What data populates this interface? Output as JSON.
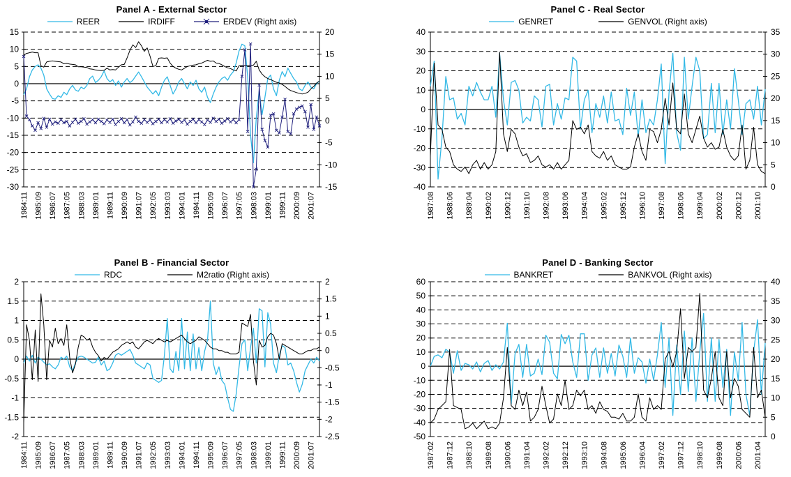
{
  "figure": {
    "background": "#ffffff",
    "grid": "2x2",
    "style": "excel-line-chart"
  },
  "colors": {
    "series_cyan": "#33b9e6",
    "series_black": "#000000",
    "series_navy": "#20207d",
    "axis": "#000000",
    "text": "#000000"
  },
  "chart_data": [
    {
      "id": "panel-a",
      "type": "line",
      "title": "Panel A - External Sector",
      "legend_position": "top",
      "grid": "dashed-horizontal",
      "left_axis": {
        "min": -30,
        "max": 15,
        "step": 5
      },
      "right_axis": {
        "min": -15,
        "max": 20,
        "step": 5
      },
      "x_tick_every": 5,
      "x_tick_labels": [
        "1984:11",
        "1985:09",
        "1986:07",
        "1987:05",
        "1988:03",
        "1989:01",
        "1989:11",
        "1990:09",
        "1991:07",
        "1992:05",
        "1993:03",
        "1994:01",
        "1994:11",
        "1995:09",
        "1996:07",
        "1997:05",
        "1998:03",
        "1999:01",
        "1999:11",
        "2000:09",
        "2001:07"
      ],
      "series": [
        {
          "name": "REER",
          "axis": "left",
          "color": "#33b9e6",
          "width": 1.3,
          "values": [
            -3.2,
            -1.5,
            2,
            4,
            5,
            5.5,
            4.5,
            2.5,
            -1.5,
            -3,
            -4.3,
            -4.5,
            -3.5,
            -4,
            -2.5,
            -3.2,
            -1.5,
            -0.5,
            -1.8,
            -2.2,
            -1,
            -1.5,
            -0.5,
            1.5,
            2.2,
            0.3,
            1,
            2,
            3.7,
            1.5,
            0.5,
            1.2,
            -0.5,
            0.8,
            -1,
            0.5,
            1.5,
            0.3,
            1,
            2.2,
            3.4,
            2,
            0.5,
            -1,
            -2,
            -3,
            -2,
            -3.5,
            -1,
            1,
            2,
            -0.5,
            -3,
            -1.5,
            0.5,
            1.5,
            0,
            -1.5,
            0.5,
            -0.5,
            1,
            -1.5,
            -2.5,
            -1,
            -4,
            -5.5,
            -3,
            -1,
            0.5,
            1.5,
            2,
            1,
            2.5,
            3.5,
            6,
            9.5,
            11.5,
            11,
            2,
            -15,
            -23,
            -10,
            -2,
            -9,
            -4,
            1.5,
            2.5,
            -1.5,
            -3.5,
            1,
            3.5,
            2,
            4.5,
            3,
            1.5,
            0.5,
            -1.5,
            -2,
            -0.5,
            0.5,
            -1,
            -1.5,
            0,
            0.8
          ]
        },
        {
          "name": "IRDIFF",
          "axis": "left",
          "color": "#000000",
          "width": 1,
          "values": [
            8.3,
            8.8,
            9,
            9.2,
            9,
            9,
            5.2,
            4.8,
            6.3,
            6.5,
            6.6,
            6.5,
            6.4,
            6.3,
            5.8,
            5.9,
            5.7,
            5.6,
            5.5,
            4.9,
            4.9,
            4.8,
            4.7,
            4.3,
            4.2,
            4,
            3.9,
            3.8,
            3.9,
            4.5,
            4,
            4.1,
            4,
            4.8,
            5.5,
            5.6,
            7.5,
            9.7,
            11.3,
            10.5,
            12.2,
            11,
            9.4,
            10.4,
            8,
            5,
            5.2,
            7.4,
            7.5,
            7.4,
            7.5,
            6,
            5,
            4.5,
            4.2,
            4,
            4.5,
            5,
            5.2,
            5.4,
            5.5,
            5.8,
            6,
            6.4,
            6.8,
            6.5,
            6.6,
            6,
            5.9,
            5.5,
            5,
            4.6,
            4.4,
            4,
            3.7,
            5.2,
            5.3,
            5.3,
            5.2,
            5.3,
            5.4,
            6.5,
            4,
            2.8,
            2,
            1.5,
            1.2,
            0.8,
            0.4,
            0.2,
            -0.2,
            -0.8,
            -1.5,
            -2,
            -2.3,
            -2.6,
            -2.8,
            -3,
            -2.8,
            -2.5,
            -1.5,
            -0.8,
            0.2,
            0.8
          ]
        },
        {
          "name": "ERDEV (Right axis)",
          "axis": "right",
          "color": "#20207d",
          "width": 1,
          "marker": "x",
          "values": [
            14.5,
            1,
            0.2,
            -1.2,
            -2.2,
            -0.5,
            -1.8,
            0.5,
            -1.5,
            0.3,
            -0.8,
            -0.3,
            -0.6,
            0.2,
            -0.5,
            -0.2,
            -1.2,
            -0.4,
            0.3,
            -0.6,
            -0.2,
            0.4,
            -0.8,
            -0.3,
            0.2,
            -0.5,
            0.3,
            -0.2,
            -0.7,
            0.1,
            -0.4,
            0.3,
            -0.9,
            -0.2,
            0.4,
            -0.5,
            0.2,
            -1,
            -0.3,
            0.8,
            -0.2,
            -0.6,
            0.2,
            -0.4,
            0.1,
            -0.7,
            -0.2,
            0.3,
            -0.5,
            0.2,
            -0.3,
            0.4,
            -0.6,
            -0.1,
            0.3,
            -0.4,
            0.1,
            -0.8,
            -0.2,
            0.3,
            -0.5,
            0.2,
            -0.3,
            -0.9,
            0.1,
            -0.4,
            0.5,
            -0.2,
            0.3,
            -0.6,
            -0.1,
            0.4,
            -0.3,
            0.2,
            -0.5,
            0.2,
            10,
            16,
            -2.5,
            17.3,
            -15,
            -11,
            8,
            -2,
            -4.5,
            -6,
            1.2,
            1.5,
            -2.2,
            -2.8,
            0.8,
            4.8,
            -2.5,
            -3,
            1.5,
            2.6,
            3,
            3.3,
            2,
            -1.5,
            3.6,
            -2,
            0.8,
            -1.2
          ]
        }
      ]
    },
    {
      "id": "panel-c",
      "type": "line",
      "title": "Panel C - Real Sector",
      "legend_position": "top",
      "grid": "dashed-horizontal",
      "left_axis": {
        "min": -40,
        "max": 40,
        "step": 10
      },
      "right_axis": {
        "min": 0,
        "max": 35,
        "step": 5
      },
      "x_tick_every": 5,
      "x_tick_labels": [
        "1987:08",
        "1988:06",
        "1989:04",
        "1990:02",
        "1990:12",
        "1991:10",
        "1992:08",
        "1993:06",
        "1994:04",
        "1995:02",
        "1995:12",
        "1996:10",
        "1997:08",
        "1998:06",
        "1999:04",
        "2000:02",
        "2000:12",
        "2001:10"
      ],
      "series": [
        {
          "name": "GENRET",
          "axis": "left",
          "color": "#33b9e6",
          "width": 1.3,
          "values": [
            12,
            25,
            -36,
            -15,
            17,
            5,
            6,
            -5,
            -2,
            -8,
            12,
            7,
            14,
            9,
            5,
            5,
            12,
            -4,
            29,
            5,
            -8,
            14,
            15,
            10,
            -7,
            -4,
            -6,
            7,
            5,
            -9,
            12,
            13,
            -8,
            3,
            -5,
            6,
            5,
            27,
            25,
            -10,
            5,
            10,
            -12,
            3,
            -4,
            7,
            -7,
            9,
            -6,
            -5,
            -13,
            11,
            -3,
            9,
            -14,
            5,
            -12,
            -5,
            -8,
            5,
            23.5,
            -28,
            8.5,
            29,
            -12,
            -21,
            27,
            -5,
            12,
            27,
            20,
            -15,
            -13,
            13.5,
            -12,
            13.5,
            -13,
            5,
            -10,
            21,
            5,
            -13,
            3,
            5,
            -5,
            12,
            -8,
            10.5
          ]
        },
        {
          "name": "GENVOL (Right axis)",
          "axis": "right",
          "color": "#000000",
          "width": 1,
          "values": [
            7,
            28,
            14,
            13,
            9,
            8,
            5,
            4,
            3.5,
            4.5,
            3,
            5,
            6,
            4,
            5.5,
            4,
            5,
            8,
            30.5,
            12,
            8,
            13,
            12,
            9,
            7,
            7.5,
            5.5,
            6,
            7,
            5,
            4.5,
            5,
            4,
            5.5,
            4,
            5,
            6,
            15,
            13,
            13.5,
            12,
            14,
            8,
            7,
            6.5,
            8,
            6,
            7,
            5,
            4.5,
            4,
            4,
            4.5,
            9,
            12,
            8,
            6,
            13,
            12.5,
            10,
            13,
            20,
            14,
            23.5,
            13,
            12,
            21,
            12,
            10,
            13,
            16,
            11,
            9,
            10,
            8.5,
            9,
            13,
            9,
            7,
            6,
            7,
            14,
            4,
            6,
            13.5,
            5,
            3.5,
            3
          ]
        }
      ]
    },
    {
      "id": "panel-b",
      "type": "line",
      "title": "Panel B - Financial Sector",
      "legend_position": "top",
      "grid": "dashed-horizontal",
      "left_axis": {
        "min": -2,
        "max": 2,
        "step": 0.5
      },
      "right_axis": {
        "min": -2.5,
        "max": 2,
        "step": 0.5
      },
      "x_tick_every": 5,
      "x_tick_labels": [
        "1984:11",
        "1985:09",
        "1986:07",
        "1987:05",
        "1988:03",
        "1989:01",
        "1989:11",
        "1990:09",
        "1991:07",
        "1992:05",
        "1993:03",
        "1994:01",
        "1994:11",
        "1995:09",
        "1996:07",
        "1997:05",
        "1998:03",
        "1999:01",
        "1999:11",
        "2000:09",
        "2001:07"
      ],
      "series": [
        {
          "name": "RDC",
          "axis": "left",
          "color": "#33b9e6",
          "width": 1.3,
          "values": [
            -0.1,
            0.08,
            -0.05,
            0.1,
            -0.1,
            0.05,
            0,
            -0.08,
            -0.15,
            -0.12,
            -0.2,
            -0.25,
            -0.15,
            0.05,
            0,
            0.08,
            -0.2,
            -0.3,
            -0.1,
            0.05,
            0.08,
            0.05,
            0,
            -0.05,
            -0.1,
            -0.08,
            0.05,
            -0.15,
            -0.05,
            -0.3,
            -0.25,
            -0.1,
            0.1,
            0.15,
            0.1,
            0.15,
            0.2,
            0.25,
            0.1,
            -0.1,
            -0.15,
            -0.2,
            -0.25,
            -0.1,
            -0.15,
            -0.5,
            -0.55,
            -0.6,
            -0.55,
            0.1,
            1.05,
            -0.25,
            -0.35,
            0.2,
            -0.3,
            1.05,
            -0.25,
            0.7,
            -0.3,
            0.65,
            -0.25,
            0.3,
            -0.3,
            0.2,
            0.5,
            1.5,
            -0.1,
            -0.4,
            -0.2,
            -0.55,
            -0.65,
            -1,
            -1.3,
            -1.35,
            -0.9,
            -0.2,
            0.4,
            0.5,
            -0.3,
            0.3,
            0.8,
            -0.1,
            1.3,
            1.25,
            -0.2,
            1.2,
            0.9,
            -0.1,
            -0.35,
            0.1,
            0.35,
            0.3,
            -0.15,
            -0.1,
            -0.3,
            -0.6,
            -0.85,
            -0.65,
            -0.3,
            -0.15,
            0,
            -0.1,
            0.05,
            -0.05
          ]
        },
        {
          "name": "M2ratio  (Right axis)",
          "axis": "right",
          "color": "#000000",
          "width": 1,
          "values": [
            -2.1,
            0.75,
            0.3,
            -0.85,
            0.6,
            -0.9,
            1.65,
            0.75,
            -0.85,
            0.3,
            0.1,
            0.65,
            0.2,
            0.35,
            0.15,
            0.75,
            -0.2,
            -0.65,
            -0.4,
            0.1,
            0.45,
            0.4,
            0.3,
            0.35,
            0.1,
            -0.05,
            -0.15,
            -0.3,
            -0.2,
            -0.25,
            -0.15,
            -0.05,
            0,
            0.05,
            0.15,
            0.2,
            0.25,
            0.2,
            0.25,
            0.1,
            0.05,
            0.15,
            0.25,
            0.3,
            0.25,
            0.2,
            0.3,
            0.35,
            0.3,
            0.25,
            0.3,
            0.25,
            0.3,
            0.35,
            0.4,
            0.45,
            0.35,
            0.25,
            0.2,
            0.25,
            0.3,
            0.4,
            0.35,
            0.3,
            0.2,
            0.1,
            0.05,
            0.05,
            0,
            0,
            -0.05,
            -0.05,
            -0.1,
            -0.1,
            -0.1,
            -0.05,
            0.8,
            0.75,
            0.7,
            1.05,
            -0.3,
            -1,
            0.3,
            0.1,
            0.15,
            0.4,
            0.5,
            0.45,
            0.2,
            -0.25,
            0.2,
            0.15,
            0.1,
            0.05,
            0,
            -0.05,
            -0.1,
            -0.1,
            -0.05,
            0,
            0,
            0.05,
            0.05,
            0.1
          ]
        }
      ]
    },
    {
      "id": "panel-d",
      "type": "line",
      "title": "Panel D - Banking Sector",
      "legend_position": "top",
      "grid": "dashed-horizontal",
      "left_axis": {
        "min": -50,
        "max": 60,
        "step": 10
      },
      "right_axis": {
        "min": 0,
        "max": 40,
        "step": 5
      },
      "x_tick_every": 5,
      "x_tick_labels": [
        "1987:02",
        "1987:12",
        "1988:10",
        "1989:08",
        "1990:06",
        "1991:04",
        "1992:02",
        "1992:12",
        "1993:10",
        "1994:08",
        "1995:06",
        "1996:04",
        "1997:02",
        "1997:12",
        "1998:10",
        "1999:08",
        "2000:06",
        "2001:04"
      ],
      "series": [
        {
          "name": "BANKRET",
          "axis": "left",
          "color": "#33b9e6",
          "width": 1.3,
          "values": [
            0,
            7,
            8,
            6,
            12,
            10,
            -5,
            11,
            -3,
            2,
            1,
            -2,
            3,
            -4,
            2,
            4,
            -3,
            1,
            -2,
            3,
            30.5,
            -27,
            9,
            15.5,
            -8,
            15.5,
            -7,
            -5,
            5,
            -6,
            22,
            17,
            -5,
            -9,
            22.5,
            16,
            22,
            3,
            -8,
            23,
            23,
            -10,
            8,
            13,
            -8,
            13,
            -5,
            9,
            -7,
            15,
            7,
            -8,
            20,
            -5,
            6,
            3,
            -12,
            5,
            -10,
            8,
            31,
            -15,
            20,
            -35,
            15,
            -20,
            25,
            -18,
            20,
            -25,
            10,
            37.5,
            -25,
            20,
            -25,
            19,
            -15,
            12,
            -35,
            10,
            -10,
            31,
            -20,
            -35,
            10,
            33,
            -20,
            16.5
          ]
        },
        {
          "name": "BANKVOL (Right axis)",
          "axis": "right",
          "color": "#000000",
          "width": 1,
          "values": [
            3.5,
            4.5,
            7,
            8,
            9,
            22.5,
            8,
            7.5,
            7,
            2,
            2.5,
            3.5,
            2,
            3,
            4,
            2,
            2.5,
            2,
            3.5,
            10,
            23,
            8,
            7,
            12,
            8,
            11.5,
            4,
            5,
            7,
            13,
            8,
            3.5,
            4.5,
            11,
            8,
            14.5,
            7,
            8,
            12,
            10.5,
            12,
            7,
            8,
            6,
            9,
            7,
            6.5,
            5,
            5,
            4.5,
            6,
            4,
            4,
            5,
            11,
            5,
            4,
            10,
            7,
            8,
            7,
            20,
            22,
            18,
            22,
            33,
            15,
            23,
            22,
            23,
            37,
            12,
            10,
            15,
            22,
            10,
            8,
            22,
            10,
            15,
            13,
            7,
            6,
            5,
            23,
            10,
            12,
            5
          ]
        }
      ]
    }
  ]
}
